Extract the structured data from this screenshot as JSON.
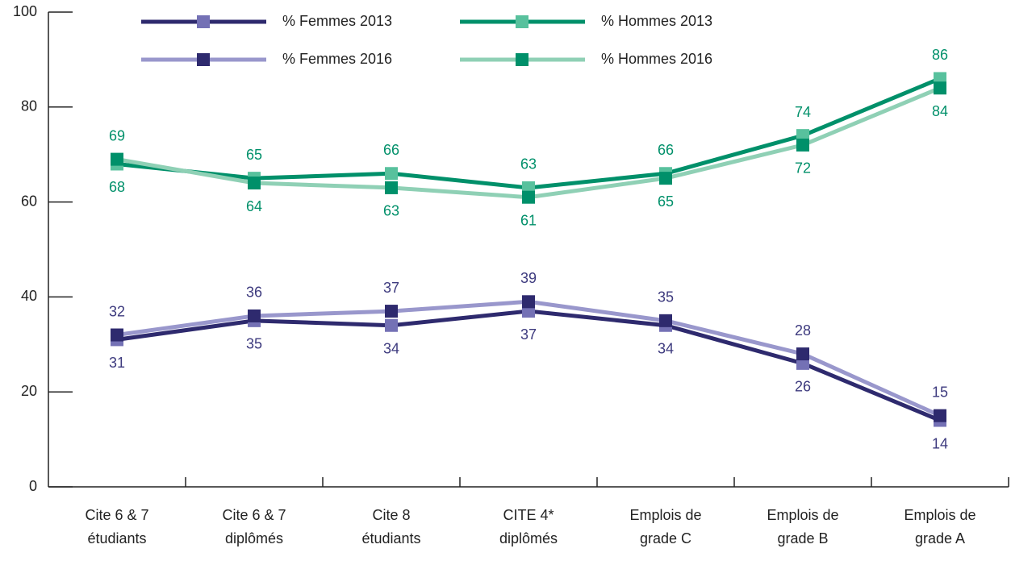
{
  "chart_data": {
    "type": "line",
    "categories": [
      [
        "Cite 6 & 7",
        "étudiants"
      ],
      [
        "Cite 6 & 7",
        "diplômés"
      ],
      [
        "Cite 8",
        "étudiants"
      ],
      [
        "CITE 4*",
        "diplômés"
      ],
      [
        "Emplois de",
        "grade C"
      ],
      [
        "Emplois de",
        "grade B"
      ],
      [
        "Emplois de",
        "grade A"
      ]
    ],
    "series": [
      {
        "name": "% Femmes 2013",
        "color": "#2e2a6e",
        "marker_color": "#7471b5",
        "label_color": "#3d3a7e",
        "values": [
          31,
          35,
          34,
          37,
          34,
          26,
          14
        ]
      },
      {
        "name": "% Femmes 2016",
        "color": "#9997cc",
        "marker_color": "#2e2a6e",
        "label_color": "#3d3a7e",
        "values": [
          32,
          36,
          37,
          39,
          35,
          28,
          15
        ]
      },
      {
        "name": "% Hommes 2013",
        "color": "#00906a",
        "marker_color": "#58c19d",
        "label_color": "#00906a",
        "values": [
          68,
          65,
          66,
          63,
          66,
          74,
          86
        ]
      },
      {
        "name": "% Hommes 2016",
        "color": "#8fd0b5",
        "marker_color": "#00906a",
        "label_color": "#00906a",
        "values": [
          69,
          64,
          63,
          61,
          65,
          72,
          84
        ]
      }
    ],
    "ylim": [
      0,
      100
    ],
    "yticks": [
      0,
      20,
      40,
      60,
      80,
      100
    ],
    "grid": false
  }
}
